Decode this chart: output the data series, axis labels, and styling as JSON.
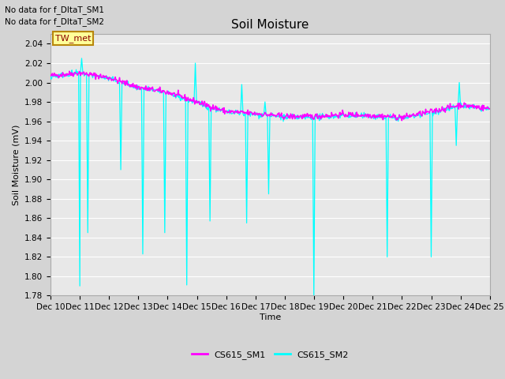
{
  "title": "Soil Moisture",
  "ylabel": "Soil Moisture (mV)",
  "xlabel": "Time",
  "no_data_text": [
    "No data for f_DltaT_SM1",
    "No data for f_DltaT_SM2"
  ],
  "tw_met_label": "TW_met",
  "tw_met_bg": "#ffff99",
  "tw_met_fg": "#8b0000",
  "legend_labels": [
    "CS615_SM1",
    "CS615_SM2"
  ],
  "legend_colors": [
    "#ff00ff",
    "#00ffff"
  ],
  "ylim": [
    1.78,
    2.05
  ],
  "yticks": [
    1.78,
    1.8,
    1.82,
    1.84,
    1.86,
    1.88,
    1.9,
    1.92,
    1.94,
    1.96,
    1.98,
    2.0,
    2.02,
    2.04
  ],
  "xtick_labels": [
    "Dec 10",
    "Dec 11",
    "Dec 12",
    "Dec 13",
    "Dec 14",
    "Dec 15",
    "Dec 16",
    "Dec 17",
    "Dec 18",
    "Dec 19",
    "Dec 20",
    "Dec 21",
    "Dec 22",
    "Dec 23",
    "Dec 24",
    "Dec 25"
  ],
  "fig_bg_color": "#d4d4d4",
  "plot_bg_color": "#e8e8e8",
  "grid_color": "#ffffff",
  "title_fontsize": 11,
  "axis_fontsize": 8,
  "tick_fontsize": 7.5,
  "nodata_fontsize": 7.5,
  "legend_fontsize": 8
}
